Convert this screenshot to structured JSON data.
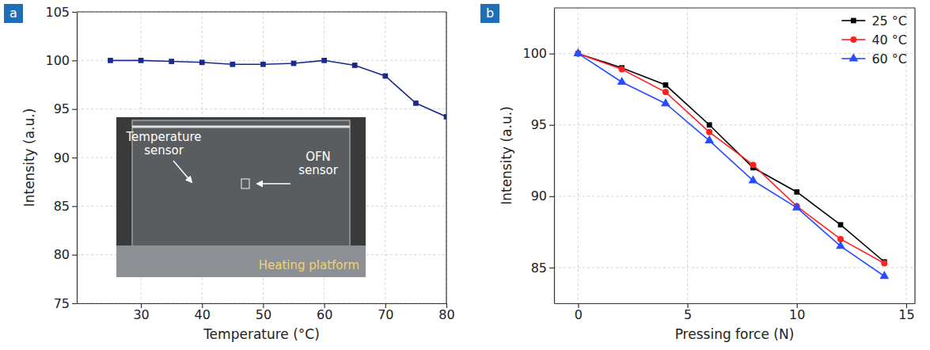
{
  "chart_data": [
    {
      "type": "line",
      "panel_label": "a",
      "x_label": "Temperature (°C)",
      "y_label": "Intensity (a.u.)",
      "x": [
        25,
        30,
        35,
        40,
        45,
        50,
        55,
        60,
        65,
        70,
        75,
        80
      ],
      "series": [
        {
          "color": "#1a2a8c",
          "marker": "square",
          "line_style": "solid",
          "values": [
            100,
            100,
            99.9,
            99.8,
            99.6,
            99.6,
            99.7,
            100,
            99.5,
            98.4,
            95.6,
            94.2
          ]
        }
      ],
      "xlim": [
        19.5,
        80
      ],
      "xticks": [
        30,
        40,
        50,
        60,
        70,
        80
      ],
      "ylim": [
        75,
        105
      ],
      "yticks": [
        75,
        80,
        85,
        90,
        95,
        100,
        105
      ],
      "grid": true,
      "annotations": [
        "Temperature sensor",
        "OFN sensor",
        "Heating platform"
      ]
    },
    {
      "type": "line",
      "panel_label": "b",
      "x_label": "Pressing force (N)",
      "y_label": "Intensity (a.u.)",
      "x": [
        0,
        2,
        4,
        6,
        8,
        10,
        12,
        14
      ],
      "series": [
        {
          "name": "25 °C",
          "color": "#000000",
          "marker": "square",
          "line_style": "solid",
          "values": [
            100,
            99,
            97.8,
            95,
            92,
            90.3,
            88,
            85.4
          ]
        },
        {
          "name": "40 °C",
          "color": "#ff2020",
          "marker": "circle",
          "line_style": "solid",
          "values": [
            100,
            98.9,
            97.3,
            94.5,
            92.2,
            89.3,
            87,
            85.3
          ]
        },
        {
          "name": "60 °C",
          "color": "#2a4bff",
          "marker": "triangle",
          "line_style": "solid",
          "values": [
            100,
            98,
            96.5,
            93.9,
            91.1,
            89.2,
            86.5,
            84.4
          ]
        }
      ],
      "xlim": [
        -1.1,
        15.4
      ],
      "xticks": [
        0,
        5,
        10,
        15
      ],
      "ylim": [
        82.5,
        103.2
      ],
      "yticks": [
        85,
        90,
        95,
        100
      ],
      "grid": true,
      "legend": "upper right"
    }
  ]
}
